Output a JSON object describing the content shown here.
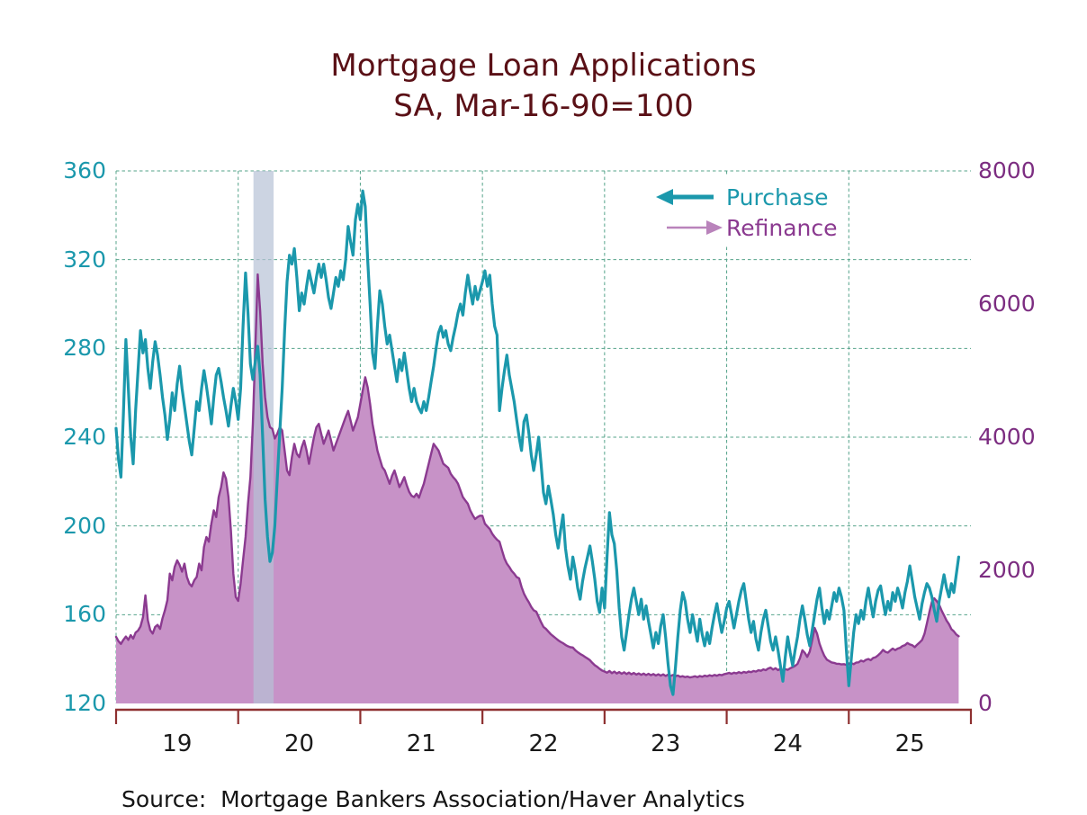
{
  "title": {
    "line1": "Mortgage Loan Applications",
    "line2": "SA, Mar-16-90=100"
  },
  "source_note": "Source:  Mortgage Bankers Association/Haver Analytics",
  "legend": {
    "purchase_label": "Purchase",
    "refinance_label": "Refinance"
  },
  "colors": {
    "title": "#5a1016",
    "purchase": "#1b98ac",
    "refinance_line": "#8b3a90",
    "refinance_fill": "#c792c7",
    "refinance_legend_line": "#b983bb",
    "right_axis_label": "#7c2d81",
    "grid": "#55a38a",
    "band": "#b7c2d6",
    "axis": "#8e3030",
    "x_label": "#1a1a1a",
    "source": "#141414"
  },
  "chart_data": {
    "type": "line",
    "title": "Mortgage Loan Applications SA, Mar-16-90=100",
    "x_axis": {
      "range": [
        2019.0,
        2026.0
      ],
      "tick_years": [
        2019,
        2020,
        2021,
        2022,
        2023,
        2024,
        2025,
        2026
      ],
      "labels": [
        "19",
        "20",
        "21",
        "22",
        "23",
        "24",
        "25"
      ]
    },
    "left_axis": {
      "range": [
        120,
        360
      ],
      "ticks": [
        120,
        160,
        200,
        240,
        280,
        320,
        360
      ],
      "series": "Purchase"
    },
    "right_axis": {
      "range": [
        0,
        8000
      ],
      "ticks": [
        0,
        2000,
        4000,
        6000,
        8000
      ],
      "series": "Refinance"
    },
    "recession_band": {
      "x0": 2020.125,
      "x1": 2020.29
    },
    "grid": true,
    "series": [
      {
        "name": "Purchase",
        "axis": "left",
        "style": "line",
        "x_start": 2019.0,
        "x_step": 0.02,
        "values": [
          244,
          230,
          222,
          250,
          284,
          262,
          240,
          228,
          252,
          270,
          288,
          278,
          284,
          271,
          262,
          274,
          283,
          277,
          268,
          258,
          250,
          239,
          248,
          260,
          252,
          264,
          272,
          262,
          254,
          246,
          238,
          232,
          244,
          256,
          252,
          262,
          270,
          263,
          255,
          246,
          258,
          268,
          271,
          265,
          258,
          252,
          245,
          254,
          262,
          256,
          248,
          262,
          290,
          314,
          296,
          273,
          266,
          274,
          281,
          268,
          240,
          212,
          195,
          184,
          188,
          200,
          221,
          242,
          262,
          288,
          310,
          322,
          318,
          325,
          312,
          297,
          305,
          300,
          308,
          315,
          310,
          305,
          312,
          318,
          312,
          318,
          311,
          303,
          298,
          305,
          312,
          308,
          315,
          311,
          320,
          335,
          328,
          322,
          338,
          345,
          338,
          351,
          344,
          320,
          300,
          278,
          271,
          290,
          306,
          300,
          290,
          282,
          286,
          279,
          272,
          265,
          275,
          270,
          278,
          270,
          262,
          256,
          262,
          256,
          253,
          251,
          256,
          252,
          258,
          265,
          272,
          280,
          287,
          290,
          285,
          288,
          282,
          279,
          285,
          290,
          296,
          300,
          295,
          305,
          313,
          306,
          300,
          308,
          302,
          306,
          310,
          315,
          308,
          313,
          300,
          290,
          286,
          252,
          262,
          270,
          277,
          268,
          262,
          256,
          248,
          240,
          234,
          247,
          250,
          242,
          232,
          225,
          232,
          240,
          228,
          215,
          210,
          218,
          212,
          205,
          196,
          190,
          198,
          205,
          190,
          182,
          176,
          186,
          180,
          172,
          167,
          175,
          181,
          186,
          191,
          184,
          176,
          166,
          161,
          172,
          163,
          186,
          206,
          196,
          192,
          180,
          163,
          150,
          144,
          152,
          160,
          167,
          172,
          166,
          160,
          167,
          158,
          164,
          157,
          151,
          145,
          152,
          147,
          155,
          160,
          150,
          138,
          128,
          124,
          136,
          150,
          162,
          170,
          166,
          158,
          152,
          160,
          154,
          148,
          158,
          151,
          146,
          152,
          147,
          154,
          160,
          165,
          158,
          152,
          157,
          163,
          166,
          160,
          154,
          160,
          166,
          171,
          174,
          166,
          158,
          152,
          157,
          149,
          144,
          152,
          158,
          162,
          155,
          148,
          144,
          150,
          144,
          137,
          130,
          141,
          150,
          143,
          137,
          144,
          150,
          158,
          164,
          158,
          151,
          146,
          153,
          160,
          167,
          172,
          163,
          156,
          162,
          158,
          164,
          170,
          166,
          172,
          168,
          162,
          144,
          128,
          140,
          152,
          160,
          156,
          162,
          158,
          166,
          172,
          165,
          159,
          166,
          171,
          173,
          166,
          160,
          166,
          162,
          170,
          166,
          172,
          168,
          163,
          170,
          175,
          182,
          175,
          168,
          163,
          158,
          165,
          170,
          174,
          172,
          168,
          162,
          157,
          166,
          172,
          178,
          172,
          168,
          174,
          170,
          178,
          186
        ]
      },
      {
        "name": "Refinance",
        "axis": "right",
        "style": "area",
        "x_start": 2019.0,
        "x_step": 0.02,
        "values": [
          1000,
          935,
          895,
          955,
          1005,
          955,
          1025,
          975,
          1065,
          1095,
          1155,
          1295,
          1625,
          1250,
          1100,
          1050,
          1150,
          1180,
          1120,
          1280,
          1400,
          1550,
          1950,
          1850,
          2050,
          2150,
          2080,
          1980,
          2100,
          1900,
          1800,
          1760,
          1850,
          1900,
          2100,
          2000,
          2350,
          2500,
          2430,
          2700,
          2900,
          2800,
          3100,
          3250,
          3470,
          3380,
          3100,
          2600,
          1950,
          1600,
          1540,
          1800,
          2150,
          2500,
          3000,
          3400,
          4200,
          5300,
          6445,
          5900,
          5100,
          4600,
          4300,
          4150,
          4125,
          3980,
          4050,
          4150,
          4100,
          3800,
          3500,
          3430,
          3700,
          3900,
          3750,
          3700,
          3850,
          3950,
          3800,
          3600,
          3800,
          4000,
          4150,
          4200,
          4050,
          3900,
          4000,
          4100,
          3950,
          3800,
          3900,
          4000,
          4100,
          4200,
          4300,
          4395,
          4250,
          4100,
          4200,
          4300,
          4500,
          4700,
          4900,
          4750,
          4500,
          4200,
          4000,
          3800,
          3675,
          3550,
          3500,
          3400,
          3300,
          3420,
          3500,
          3380,
          3250,
          3320,
          3400,
          3280,
          3180,
          3120,
          3100,
          3150,
          3090,
          3200,
          3300,
          3450,
          3600,
          3750,
          3900,
          3850,
          3800,
          3700,
          3600,
          3570,
          3540,
          3450,
          3400,
          3360,
          3300,
          3200,
          3100,
          3050,
          3000,
          2900,
          2830,
          2770,
          2800,
          2820,
          2820,
          2700,
          2660,
          2620,
          2550,
          2500,
          2460,
          2430,
          2300,
          2180,
          2100,
          2050,
          1990,
          1950,
          1900,
          1880,
          1750,
          1650,
          1580,
          1520,
          1450,
          1400,
          1380,
          1300,
          1220,
          1150,
          1120,
          1080,
          1040,
          1010,
          980,
          950,
          925,
          905,
          880,
          860,
          845,
          840,
          800,
          770,
          745,
          725,
          700,
          675,
          650,
          610,
          575,
          550,
          520,
          495,
          480,
          462,
          488,
          455,
          478,
          450,
          472,
          446,
          468,
          442,
          464,
          438,
          458,
          434,
          452,
          430,
          448,
          426,
          446,
          424,
          442,
          420,
          438,
          418,
          436,
          414,
          432,
          412,
          428,
          408,
          420,
          400,
          410,
          396,
          404,
          390,
          398,
          408,
          394,
          412,
          402,
          418,
          408,
          424,
          412,
          428,
          416,
          432,
          424,
          440,
          448,
          460,
          444,
          462,
          452,
          470,
          456,
          474,
          462,
          480,
          470,
          488,
          478,
          498,
          490,
          512,
          500,
          525,
          538,
          510,
          530,
          502,
          522,
          495,
          515,
          505,
          528,
          545,
          565,
          595,
          680,
          800,
          760,
          700,
          780,
          950,
          1135,
          1050,
          900,
          800,
          715,
          658,
          636,
          616,
          610,
          596,
          596,
          586,
          590,
          580,
          592,
          604,
          590,
          614,
          618,
          644,
          630,
          655,
          668,
          650,
          684,
          695,
          724,
          758,
          804,
          775,
          764,
          796,
          824,
          800,
          824,
          836,
          864,
          876,
          908,
          886,
          874,
          846,
          884,
          916,
          954,
          1046,
          1204,
          1376,
          1524,
          1580,
          1536,
          1484,
          1396,
          1324,
          1246,
          1192,
          1116,
          1084,
          1036,
          1010
        ]
      }
    ]
  }
}
